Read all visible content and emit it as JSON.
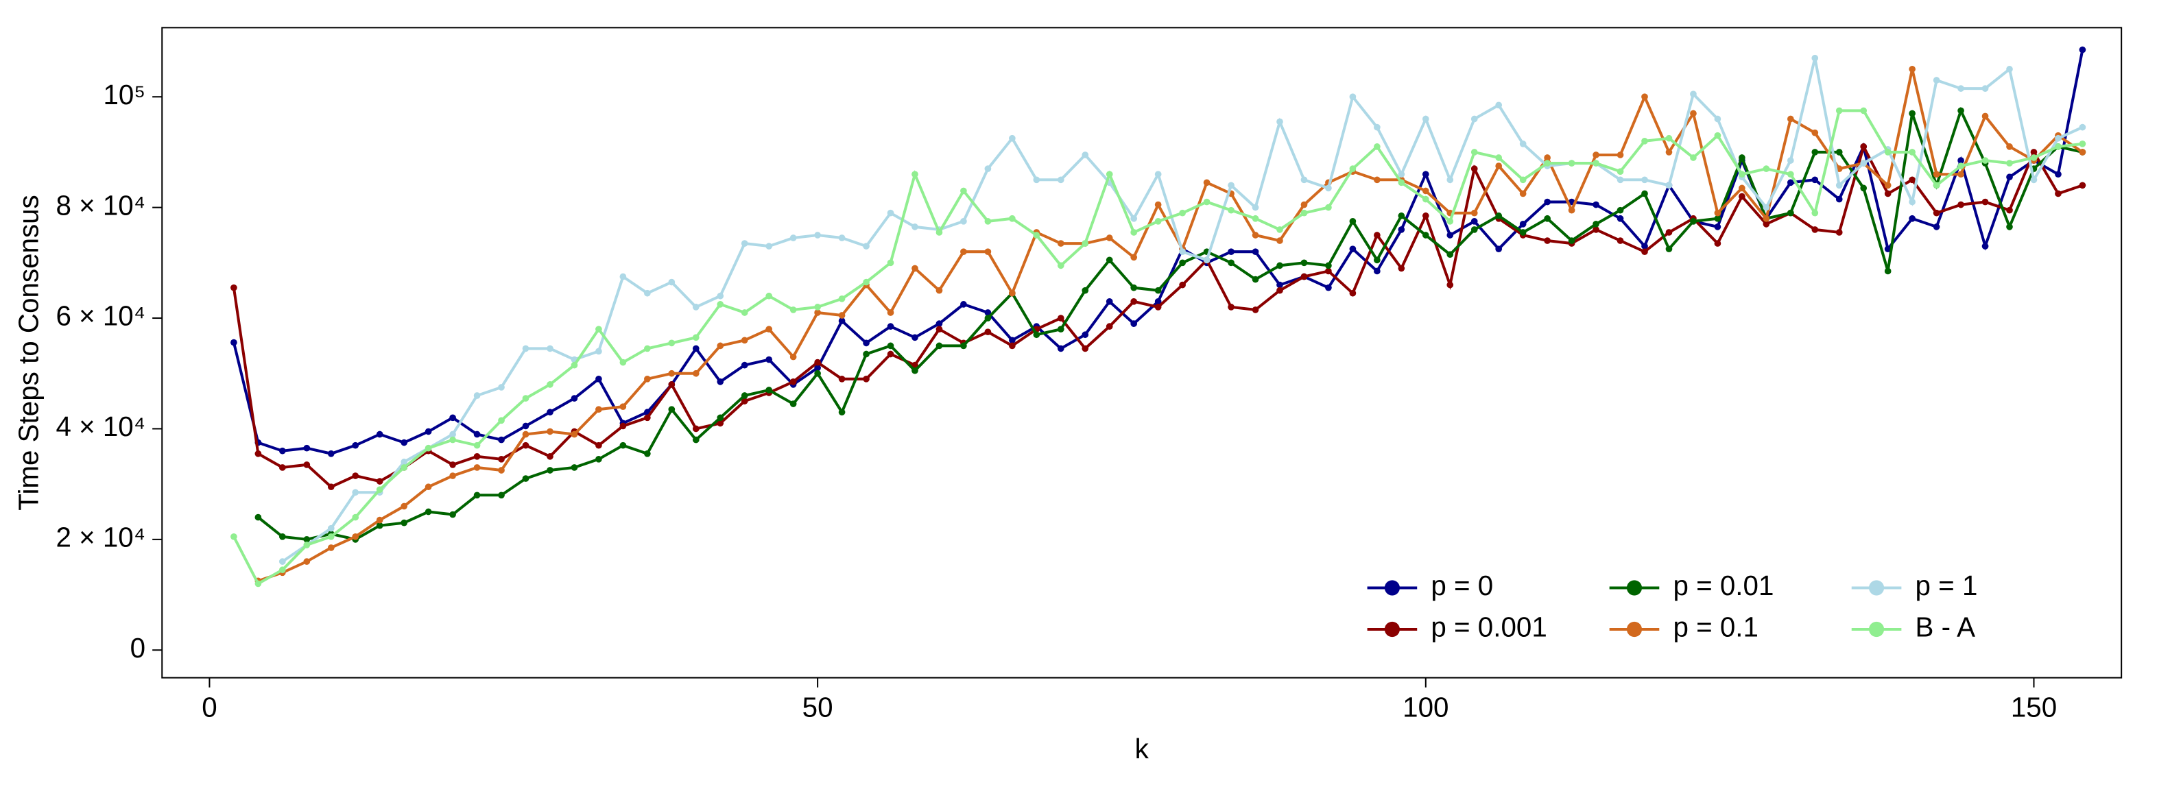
{
  "chart_data": {
    "type": "line",
    "x_label": "k",
    "y_label": "Time Steps to Consensus",
    "x": [
      2,
      4,
      6,
      8,
      10,
      12,
      14,
      16,
      18,
      20,
      22,
      24,
      26,
      28,
      30,
      32,
      34,
      36,
      38,
      40,
      42,
      44,
      46,
      48,
      50,
      52,
      54,
      56,
      58,
      60,
      62,
      64,
      66,
      68,
      70,
      72,
      74,
      76,
      78,
      80,
      82,
      84,
      86,
      88,
      90,
      92,
      94,
      96,
      98,
      100,
      102,
      104,
      106,
      108,
      110,
      112,
      114,
      116,
      118,
      120,
      122,
      124,
      126,
      128,
      130,
      132,
      134,
      136,
      138,
      140,
      142,
      144,
      146,
      148,
      150,
      152,
      154
    ],
    "xlim": [
      -3.9,
      157.2
    ],
    "xticks": [
      0,
      50,
      100,
      150
    ],
    "ylim": [
      -5000,
      112500
    ],
    "yticks": [
      0,
      {
        "value": 20000,
        "label": "2 × 10⁴"
      },
      {
        "value": 40000,
        "label": "4 × 10⁴"
      },
      {
        "value": 60000,
        "label": "6 × 10⁴"
      },
      {
        "value": 80000,
        "label": "8 × 10⁴"
      },
      {
        "value": 100000,
        "label": "10⁵"
      }
    ],
    "legend": "bottom-right",
    "series": [
      {
        "name": "p = 0",
        "color": "#00008B",
        "values": [
          55600,
          37500,
          36000,
          36500,
          35500,
          37000,
          39000,
          37500,
          39500,
          42000,
          39000,
          38000,
          40500,
          43000,
          45500,
          49000,
          41000,
          43000,
          48000,
          54500,
          48500,
          51500,
          52500,
          48000,
          51000,
          59500,
          55500,
          58500,
          56500,
          59000,
          62500,
          61000,
          56000,
          58500,
          54500,
          57000,
          63000,
          59000,
          63000,
          72500,
          70000,
          72000,
          72000,
          66000,
          67500,
          65500,
          72500,
          68500,
          76000,
          86000,
          75000,
          77500,
          72500,
          77000,
          81000,
          81000,
          80500,
          78000,
          73000,
          84000,
          77500,
          76500,
          88500,
          78000,
          84500,
          85000,
          81500,
          91000,
          72500,
          78000,
          76500,
          88500,
          73000,
          85500,
          88500,
          86000,
          108500
        ]
      },
      {
        "name": "p = 0.001",
        "color": "#8B0000",
        "values": [
          65500,
          35500,
          33000,
          33500,
          29500,
          31500,
          30500,
          33000,
          36000,
          33500,
          35000,
          34500,
          37000,
          35000,
          39500,
          37000,
          40500,
          42000,
          48000,
          40000,
          41000,
          45000,
          46500,
          48500,
          52000,
          49000,
          49000,
          53500,
          51500,
          58000,
          55500,
          57500,
          55000,
          58000,
          60000,
          54500,
          58500,
          63000,
          62000,
          66000,
          70500,
          62000,
          61500,
          65000,
          67500,
          68500,
          64500,
          75000,
          69000,
          78500,
          66000,
          87000,
          78000,
          75000,
          74000,
          73500,
          76000,
          74000,
          72000,
          75500,
          78000,
          73500,
          82000,
          77000,
          79000,
          76000,
          75500,
          91000,
          82500,
          85000,
          79000,
          80500,
          81000,
          79500,
          90000,
          82500,
          84000
        ]
      },
      {
        "name": "p = 0.01",
        "color": "#006400",
        "values": [
          null,
          24000,
          20500,
          20000,
          21000,
          20000,
          22500,
          23000,
          25000,
          24500,
          28000,
          28000,
          31000,
          32500,
          33000,
          34500,
          37000,
          35500,
          43500,
          38000,
          42000,
          46000,
          47000,
          44500,
          50000,
          43000,
          53500,
          55000,
          50500,
          55000,
          55000,
          60000,
          64500,
          57000,
          58000,
          65000,
          70500,
          65500,
          65000,
          70000,
          72000,
          70000,
          67000,
          69500,
          70000,
          69500,
          77500,
          70500,
          78500,
          75000,
          71500,
          76000,
          78500,
          75500,
          78000,
          74000,
          77000,
          79500,
          82500,
          72500,
          77500,
          78000,
          89000,
          78000,
          79000,
          90000,
          90000,
          83500,
          68500,
          97000,
          84000,
          97500,
          88000,
          76500,
          87000,
          91000,
          90000
        ]
      },
      {
        "name": "p = 0.1",
        "color": "#D2691E",
        "values": [
          null,
          12500,
          14000,
          16000,
          18500,
          20500,
          23500,
          26000,
          29500,
          31500,
          33000,
          32500,
          39000,
          39500,
          39000,
          43500,
          44000,
          49000,
          50000,
          50000,
          55000,
          56000,
          58000,
          53000,
          61000,
          60500,
          66000,
          61000,
          69000,
          65000,
          72000,
          72000,
          64500,
          75500,
          73500,
          73500,
          74500,
          71000,
          80500,
          72500,
          84500,
          82500,
          75000,
          74000,
          80500,
          84500,
          86500,
          85000,
          85000,
          83000,
          79000,
          79000,
          87500,
          82500,
          89000,
          79500,
          89500,
          89500,
          100000,
          90000,
          97000,
          79000,
          83500,
          78000,
          96000,
          93500,
          87000,
          88000,
          84000,
          105000,
          86000,
          86000,
          96500,
          91000,
          88500,
          93000,
          90000
        ]
      },
      {
        "name": "p = 1",
        "color": "#ADD8E6",
        "values": [
          null,
          null,
          16000,
          19000,
          22000,
          28500,
          28500,
          34000,
          36500,
          39000,
          46000,
          47500,
          54500,
          54500,
          52500,
          54000,
          67500,
          64500,
          66500,
          62000,
          64000,
          73500,
          73000,
          74500,
          75000,
          74500,
          73000,
          79000,
          76500,
          76000,
          77500,
          87000,
          92500,
          85000,
          85000,
          89500,
          84500,
          78000,
          86000,
          72000,
          70500,
          84000,
          80000,
          95500,
          85000,
          83500,
          100000,
          94500,
          86000,
          96000,
          85000,
          96000,
          98500,
          91500,
          87500,
          88000,
          88000,
          85000,
          85000,
          84000,
          100500,
          96000,
          85500,
          80000,
          88500,
          107000,
          84000,
          88000,
          90500,
          81000,
          103000,
          101500,
          101500,
          105000,
          85000,
          92500,
          94500
        ]
      },
      {
        "name": "B - A",
        "color": "#90EE90",
        "values": [
          20500,
          12000,
          14500,
          19000,
          20500,
          24000,
          29000,
          33000,
          36500,
          38000,
          37000,
          41500,
          45500,
          48000,
          51500,
          58000,
          52000,
          54500,
          55500,
          56500,
          62500,
          61000,
          64000,
          61500,
          62000,
          63500,
          66500,
          70000,
          86000,
          75500,
          83000,
          77500,
          78000,
          75000,
          69500,
          73500,
          86000,
          75500,
          77500,
          79000,
          81000,
          79500,
          78000,
          76000,
          79000,
          80000,
          87000,
          91000,
          84500,
          81500,
          77500,
          90000,
          89000,
          85000,
          88000,
          88000,
          88000,
          86500,
          92000,
          92500,
          89000,
          93000,
          86000,
          87000,
          86000,
          79000,
          97500,
          97500,
          90000,
          90000,
          84000,
          87500,
          88500,
          88000,
          89000,
          91000,
          91500
        ]
      }
    ]
  }
}
